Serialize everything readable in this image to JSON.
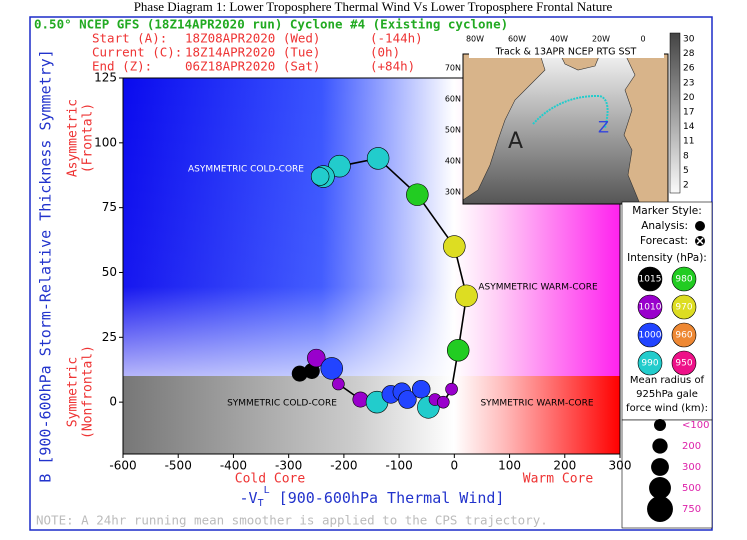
{
  "chart_data": {
    "type": "scatter",
    "title": "Phase Diagram 1: Lower Troposphere Thermal Wind Vs Lower Troposphere Frontal Nature",
    "header": "0.50° NCEP GFS (18Z14APR2020 run) Cyclone #4 (Existing cyclone)",
    "run_info": [
      [
        "Start (A):",
        "18Z08APR2020 (Wed)",
        "(-144h)"
      ],
      [
        "Current (C):",
        "18Z14APR2020 (Tue)",
        "(0h)"
      ],
      [
        "End (Z):",
        "06Z18APR2020 (Sat)",
        "(+84h)"
      ]
    ],
    "ylabel": "B [900-600hPa Storm-Relative Thickness Symmetry]",
    "y_side_labels": [
      [
        "Asymmetric",
        "(Frontal)"
      ],
      [
        "Symmetric",
        "(Nonfrontal)"
      ]
    ],
    "xlabel": [
      "-V",
      "T",
      "L",
      " [900-600hPa Thermal Wind]"
    ],
    "x_side_labels": [
      "Cold Core",
      "Warm Core"
    ],
    "annotations": [
      "ASYMMETRIC COLD-CORE",
      "ASYMMETRIC WARM-CORE",
      "SYMMETRIC COLD-CORE",
      "SYMMETRIC WARM-CORE"
    ],
    "note": "NOTE:  A 24hr running mean smoother is applied to the CPS trajectory.",
    "xlim": [
      -600,
      300
    ],
    "xticks": [
      -600,
      -500,
      -400,
      -300,
      -200,
      -100,
      0,
      100,
      200,
      300
    ],
    "ylim": [
      -20,
      125
    ],
    "yticks": [
      0,
      25,
      50,
      75,
      100,
      125
    ],
    "line_color": "#000000",
    "series": [
      {
        "x": [
          -280,
          -258,
          -250,
          -222,
          -210,
          -170,
          -140,
          -115,
          -95,
          -85,
          -60,
          -47,
          -35,
          -20,
          -5,
          7,
          22,
          0,
          -67,
          -138,
          -208,
          -237,
          -243
        ],
        "values": [
          11,
          12,
          17,
          13,
          7,
          1,
          0,
          3,
          4,
          1,
          5,
          -2,
          1,
          0,
          5,
          20,
          41,
          60,
          80,
          94,
          91,
          87,
          87
        ],
        "sizes": [
          200,
          200,
          300,
          500,
          100,
          200,
          500,
          300,
          300,
          300,
          300,
          500,
          100,
          100,
          100,
          500,
          500,
          500,
          500,
          500,
          500,
          500,
          300
        ],
        "colors": [
          "#000000",
          "#000000",
          "#9900cc",
          "#2244ff",
          "#9900cc",
          "#9900cc",
          "#22cccc",
          "#2244ff",
          "#2244ff",
          "#2244ff",
          "#2244ff",
          "#22cccc",
          "#9900cc",
          "#9900cc",
          "#9900cc",
          "#22cc22",
          "#dddd22",
          "#dddd22",
          "#22cc22",
          "#22cccc",
          "#22cccc",
          "#22cccc",
          "#22cccc"
        ]
      }
    ],
    "legend": {
      "marker_style_title": "Marker Style:",
      "analysis": "Analysis:",
      "forecast": "Forecast:",
      "intensity_title": "Intensity (hPa):",
      "intensity": [
        {
          "value": 1015,
          "color": "#000000"
        },
        {
          "value": 980,
          "color": "#22cc22"
        },
        {
          "value": 1010,
          "color": "#9900cc"
        },
        {
          "value": 970,
          "color": "#dddd22"
        },
        {
          "value": 1000,
          "color": "#2244ff"
        },
        {
          "value": 960,
          "color": "#ee8833"
        },
        {
          "value": 990,
          "color": "#22cccc"
        },
        {
          "value": 950,
          "color": "#ee1188"
        }
      ],
      "size_title": [
        "Mean radius of",
        "925hPa gale",
        "force wind (km):"
      ],
      "sizes": [
        {
          "value": 100,
          "label": "<100"
        },
        200,
        300,
        500,
        750
      ]
    }
  },
  "inset": {
    "title": "Track & 13APR NCEP RTG SST",
    "lon_labels": [
      "80W",
      "60W",
      "40W",
      "20W",
      "0"
    ],
    "lat_labels": [
      "70N",
      "60N",
      "50N",
      "40N",
      "30N"
    ],
    "colorbar_ticks": [
      30,
      28,
      26,
      23,
      20,
      17,
      14,
      11,
      8,
      5,
      2
    ],
    "track_labels": [
      "A",
      "Z"
    ]
  }
}
